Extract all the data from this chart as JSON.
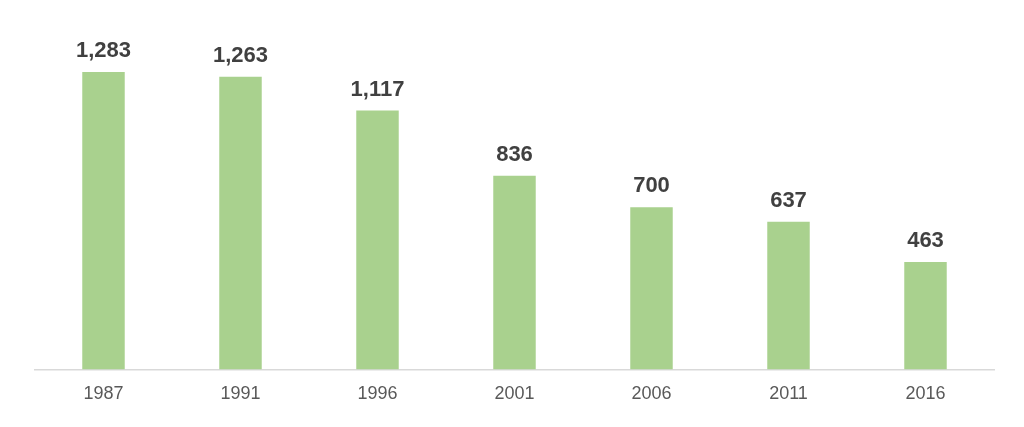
{
  "chart_data": {
    "type": "bar",
    "categories": [
      "1987",
      "1991",
      "1996",
      "2001",
      "2006",
      "2011",
      "2016"
    ],
    "values": [
      1283,
      1263,
      1117,
      836,
      700,
      637,
      463
    ],
    "value_labels": [
      "1,283",
      "1,263",
      "1,117",
      "836",
      "700",
      "637",
      "463"
    ],
    "color": "#a9d18e",
    "grid": false,
    "legend": false
  }
}
